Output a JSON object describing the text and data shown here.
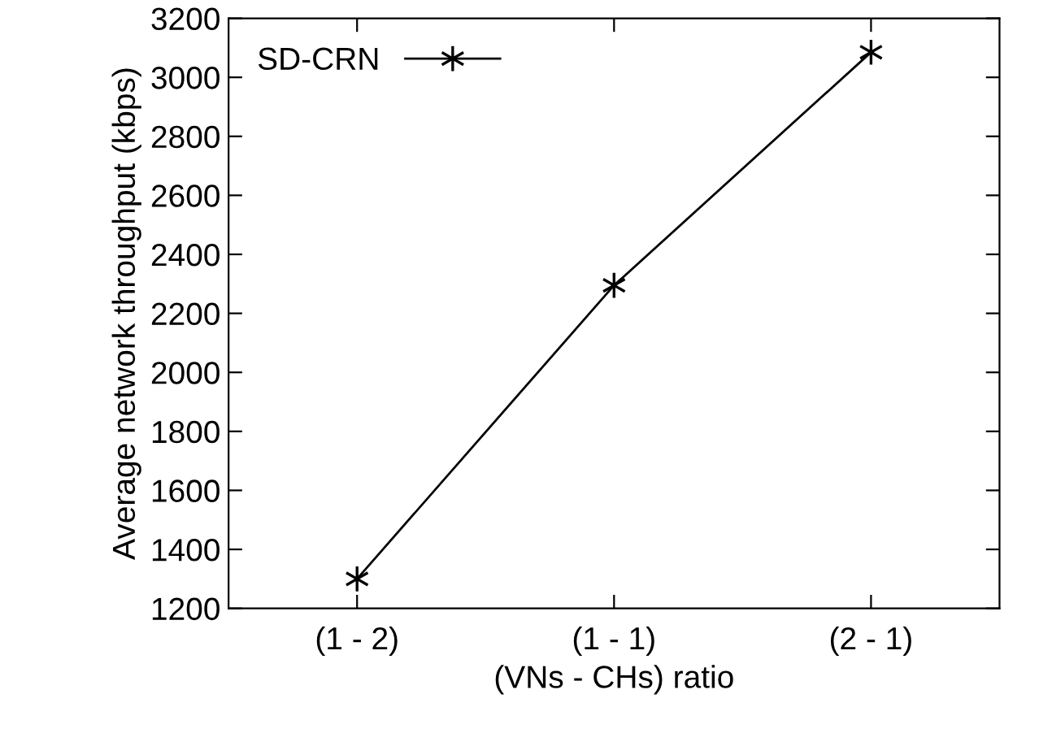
{
  "chart_data": {
    "type": "line",
    "xlabel": "(VNs - CHs) ratio",
    "ylabel": "Average network throughput (kbps)",
    "categories": [
      "(1 - 2)",
      "(1 - 1)",
      "(2 - 1)"
    ],
    "series": [
      {
        "name": "SD-CRN",
        "color": "#000000",
        "values": [
          1300,
          2295,
          3085
        ]
      }
    ],
    "ylim": [
      1200,
      3200
    ],
    "yticks": [
      1200,
      1400,
      1600,
      1800,
      2000,
      2200,
      2400,
      2600,
      2800,
      3000,
      3200
    ],
    "marker": "cross",
    "line_style": "solid",
    "legend": "top left",
    "grid": false
  }
}
